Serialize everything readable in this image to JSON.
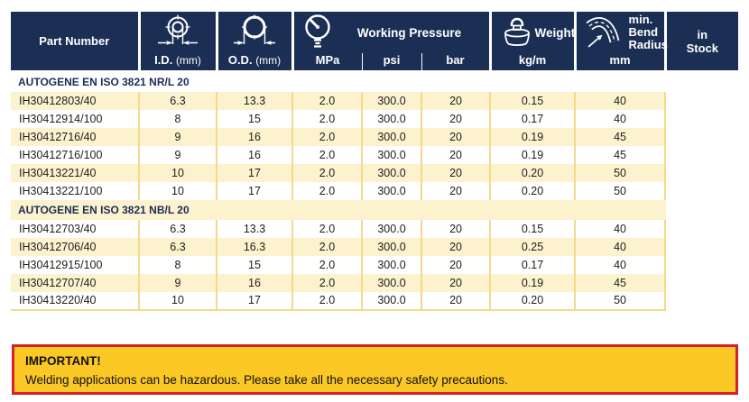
{
  "colors": {
    "header_bg": "#1b2f55",
    "row_yellow": "#fcf3ce",
    "grid_yellow": "#f3da8b",
    "notice_bg": "#fbc825",
    "notice_border": "#d2232a"
  },
  "table": {
    "header": {
      "part_number": "Part Number",
      "id_abbr": "I.D.",
      "id_unit": "(mm)",
      "od_abbr": "O.D.",
      "od_unit": "(mm)",
      "working_pressure": "Working Pressure",
      "mpa": "MPa",
      "psi": "psi",
      "bar": "bar",
      "weight": "Weight",
      "weight_unit": "kg/m",
      "bend_radius": "min. Bend Radius",
      "bend_unit": "mm",
      "in_stock": "in Stock",
      "icons": {
        "id": "inner-diameter-icon",
        "od": "outer-diameter-icon",
        "pressure": "pressure-gauge-icon",
        "weight": "weight-icon",
        "bend": "bend-radius-icon"
      }
    },
    "columns": [
      "Part Number",
      "I.D. (mm)",
      "O.D. (mm)",
      "MPa",
      "psi",
      "bar",
      "kg/m",
      "mm",
      "in Stock"
    ],
    "sections": [
      {
        "title": "AUTOGENE EN ISO 3821 NR/L 20",
        "rows": [
          [
            "IH30412803/40",
            "6.3",
            "13.3",
            "2.0",
            "300.0",
            "20",
            "0.15",
            "40"
          ],
          [
            "IH30412914/100",
            "8",
            "15",
            "2.0",
            "300.0",
            "20",
            "0.17",
            "40"
          ],
          [
            "IH30412716/40",
            "9",
            "16",
            "2.0",
            "300.0",
            "20",
            "0.19",
            "45"
          ],
          [
            "IH30412716/100",
            "9",
            "16",
            "2.0",
            "300.0",
            "20",
            "0.19",
            "45"
          ],
          [
            "IH30413221/40",
            "10",
            "17",
            "2.0",
            "300.0",
            "20",
            "0.20",
            "50"
          ],
          [
            "IH30413221/100",
            "10",
            "17",
            "2.0",
            "300.0",
            "20",
            "0.20",
            "50"
          ]
        ]
      },
      {
        "title": "AUTOGENE EN ISO 3821 NB/L 20",
        "rows": [
          [
            "IH30412703/40",
            "6.3",
            "13.3",
            "2.0",
            "300.0",
            "20",
            "0.15",
            "40"
          ],
          [
            "IH30412706/40",
            "6.3",
            "16.3",
            "2.0",
            "300.0",
            "20",
            "0.25",
            "40"
          ],
          [
            "IH30412915/100",
            "8",
            "15",
            "2.0",
            "300.0",
            "20",
            "0.17",
            "40"
          ],
          [
            "IH30412707/40",
            "9",
            "16",
            "2.0",
            "300.0",
            "20",
            "0.19",
            "45"
          ],
          [
            "IH30413220/40",
            "10",
            "17",
            "2.0",
            "300.0",
            "20",
            "0.20",
            "50"
          ]
        ]
      }
    ]
  },
  "notice": {
    "title": "IMPORTANT!",
    "text": "Welding applications can be hazardous. Please take all the necessary safety precautions."
  }
}
